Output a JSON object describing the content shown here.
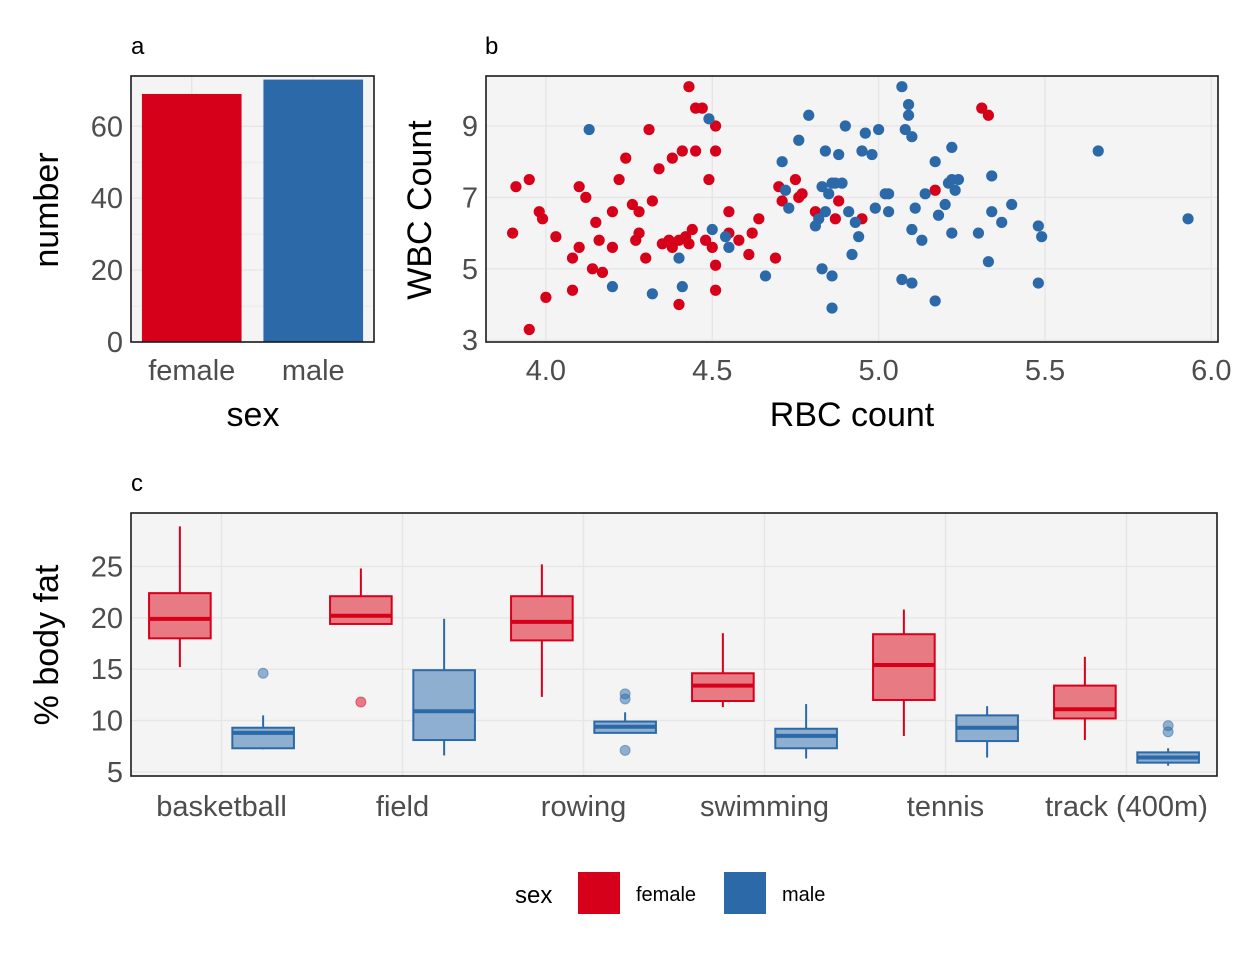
{
  "colors": {
    "female": "#D7001A",
    "male": "#2C69A8",
    "panel_bg": "#F4F4F4",
    "grid": "#E6E6E6",
    "female_fill": "#E87A83",
    "male_fill": "#8FAFD0"
  },
  "legend": {
    "title": "sex",
    "items": [
      {
        "key": "female",
        "label": "female"
      },
      {
        "key": "male",
        "label": "male"
      }
    ],
    "position": "bottom"
  },
  "chart_data": [
    {
      "panel": "a",
      "type": "bar",
      "title": "a",
      "xlabel": "sex",
      "ylabel": "number",
      "categories": [
        "female",
        "male"
      ],
      "values": [
        69,
        73
      ],
      "yticks": [
        0,
        20,
        40,
        60
      ],
      "ytick_labels": [
        "0",
        "20",
        "40",
        "60"
      ],
      "ylim": [
        0,
        74
      ],
      "grid": true
    },
    {
      "panel": "b",
      "type": "scatter",
      "title": "b",
      "xlabel": "RBC count",
      "ylabel": "WBC Count",
      "xlim": [
        3.82,
        6.02
      ],
      "ylim": [
        2.95,
        10.4
      ],
      "xticks": [
        4.0,
        4.5,
        5.0,
        5.5,
        6.0
      ],
      "xtick_labels": [
        "4.0",
        "4.5",
        "5.0",
        "5.5",
        "6.0"
      ],
      "yticks": [
        3,
        5,
        7,
        9
      ],
      "ytick_labels": [
        "3",
        "5",
        "7",
        "9"
      ],
      "grid": true,
      "series": [
        {
          "name": "female",
          "points": [
            [
              3.91,
              7.3
            ],
            [
              3.95,
              7.5
            ],
            [
              3.9,
              6.0
            ],
            [
              3.95,
              3.3
            ],
            [
              4.0,
              4.2
            ],
            [
              3.98,
              6.6
            ],
            [
              3.99,
              6.4
            ],
            [
              4.03,
              5.9
            ],
            [
              4.08,
              5.3
            ],
            [
              4.08,
              4.4
            ],
            [
              4.1,
              7.3
            ],
            [
              4.12,
              7.0
            ],
            [
              4.14,
              5.0
            ],
            [
              4.16,
              5.8
            ],
            [
              4.17,
              4.9
            ],
            [
              4.2,
              6.6
            ],
            [
              4.22,
              7.5
            ],
            [
              4.24,
              8.1
            ],
            [
              4.26,
              6.8
            ],
            [
              4.27,
              5.8
            ],
            [
              4.28,
              6.0
            ],
            [
              4.28,
              6.6
            ],
            [
              4.3,
              5.3
            ],
            [
              4.31,
              8.9
            ],
            [
              4.32,
              6.9
            ],
            [
              4.34,
              7.8
            ],
            [
              4.37,
              5.8
            ],
            [
              4.38,
              5.6
            ],
            [
              4.38,
              8.1
            ],
            [
              4.4,
              5.8
            ],
            [
              4.4,
              4.0
            ],
            [
              4.41,
              8.3
            ],
            [
              4.42,
              5.9
            ],
            [
              4.43,
              5.7
            ],
            [
              4.43,
              10.1
            ],
            [
              4.44,
              6.1
            ],
            [
              4.45,
              8.3
            ],
            [
              4.45,
              9.5
            ],
            [
              4.47,
              9.5
            ],
            [
              4.48,
              5.8
            ],
            [
              4.49,
              7.5
            ],
            [
              4.5,
              5.6
            ],
            [
              4.51,
              9.0
            ],
            [
              4.51,
              8.3
            ],
            [
              4.51,
              5.1
            ],
            [
              4.51,
              4.4
            ],
            [
              4.55,
              6.6
            ],
            [
              4.58,
              5.8
            ],
            [
              4.62,
              6.0
            ],
            [
              4.64,
              6.4
            ],
            [
              4.69,
              5.3
            ],
            [
              4.7,
              7.3
            ],
            [
              4.71,
              6.9
            ],
            [
              4.75,
              7.5
            ],
            [
              4.77,
              7.1
            ],
            [
              4.81,
              6.6
            ],
            [
              4.87,
              6.4
            ],
            [
              4.88,
              6.9
            ],
            [
              4.95,
              6.4
            ],
            [
              5.17,
              7.2
            ],
            [
              5.31,
              9.5
            ],
            [
              5.33,
              9.3
            ],
            [
              4.76,
              7.0
            ],
            [
              4.55,
              6.0
            ],
            [
              4.35,
              5.7
            ],
            [
              4.2,
              5.6
            ],
            [
              4.15,
              6.3
            ],
            [
              4.1,
              5.6
            ],
            [
              4.61,
              5.4
            ]
          ]
        },
        {
          "name": "male",
          "points": [
            [
              4.13,
              8.9
            ],
            [
              4.2,
              4.5
            ],
            [
              4.32,
              4.3
            ],
            [
              4.4,
              5.3
            ],
            [
              4.41,
              4.5
            ],
            [
              4.49,
              9.2
            ],
            [
              4.5,
              6.1
            ],
            [
              4.54,
              5.9
            ],
            [
              4.55,
              5.6
            ],
            [
              4.66,
              4.8
            ],
            [
              4.71,
              8.0
            ],
            [
              4.73,
              6.7
            ],
            [
              4.72,
              7.2
            ],
            [
              4.76,
              8.6
            ],
            [
              4.79,
              9.3
            ],
            [
              4.81,
              6.2
            ],
            [
              4.82,
              6.4
            ],
            [
              4.83,
              7.3
            ],
            [
              4.83,
              5.0
            ],
            [
              4.84,
              8.3
            ],
            [
              4.84,
              6.6
            ],
            [
              4.85,
              7.1
            ],
            [
              4.86,
              4.8
            ],
            [
              4.86,
              3.9
            ],
            [
              4.86,
              7.4
            ],
            [
              4.87,
              7.4
            ],
            [
              4.88,
              8.2
            ],
            [
              4.89,
              7.4
            ],
            [
              4.9,
              9.0
            ],
            [
              4.91,
              6.6
            ],
            [
              4.92,
              5.4
            ],
            [
              4.93,
              6.3
            ],
            [
              4.94,
              5.9
            ],
            [
              4.95,
              8.3
            ],
            [
              4.96,
              8.8
            ],
            [
              4.98,
              8.2
            ],
            [
              4.99,
              6.7
            ],
            [
              5.0,
              8.9
            ],
            [
              5.02,
              7.1
            ],
            [
              5.03,
              7.1
            ],
            [
              5.03,
              6.6
            ],
            [
              5.07,
              10.1
            ],
            [
              5.08,
              8.9
            ],
            [
              5.09,
              9.6
            ],
            [
              5.09,
              9.3
            ],
            [
              5.1,
              8.7
            ],
            [
              5.07,
              4.7
            ],
            [
              5.1,
              4.6
            ],
            [
              5.1,
              6.1
            ],
            [
              5.11,
              6.7
            ],
            [
              5.13,
              5.8
            ],
            [
              5.14,
              7.1
            ],
            [
              5.17,
              8.0
            ],
            [
              5.18,
              6.5
            ],
            [
              5.17,
              4.1
            ],
            [
              5.2,
              6.8
            ],
            [
              5.21,
              7.4
            ],
            [
              5.22,
              8.4
            ],
            [
              5.23,
              7.2
            ],
            [
              5.24,
              7.5
            ],
            [
              5.22,
              6.0
            ],
            [
              5.3,
              6.0
            ],
            [
              5.33,
              5.2
            ],
            [
              5.34,
              7.6
            ],
            [
              5.34,
              6.6
            ],
            [
              5.37,
              6.3
            ],
            [
              5.4,
              6.8
            ],
            [
              5.48,
              6.2
            ],
            [
              5.48,
              4.6
            ],
            [
              5.49,
              5.9
            ],
            [
              5.66,
              8.3
            ],
            [
              5.93,
              6.4
            ],
            [
              5.22,
              7.5
            ]
          ]
        }
      ]
    },
    {
      "panel": "c",
      "type": "boxplot",
      "title": "c",
      "xlabel": "",
      "ylabel": "% body fat",
      "categories": [
        "basketball",
        "field",
        "rowing",
        "swimming",
        "tennis",
        "track (400m)"
      ],
      "ylim": [
        4.6,
        30.2
      ],
      "yticks": [
        5,
        10,
        15,
        20,
        25
      ],
      "ytick_labels": [
        "5",
        "10",
        "15",
        "20",
        "25"
      ],
      "grid": true,
      "series": [
        {
          "name": "female",
          "boxes": [
            {
              "category": "basketball",
              "whisker_low": 15.2,
              "q1": 18.0,
              "median": 19.9,
              "q3": 22.4,
              "whisker_high": 28.9,
              "outliers": []
            },
            {
              "category": "field",
              "whisker_low": 19.4,
              "q1": 19.4,
              "median": 20.2,
              "q3": 22.1,
              "whisker_high": 24.8,
              "outliers": [
                11.8
              ]
            },
            {
              "category": "rowing",
              "whisker_low": 12.3,
              "q1": 17.8,
              "median": 19.6,
              "q3": 22.1,
              "whisker_high": 25.2,
              "outliers": []
            },
            {
              "category": "swimming",
              "whisker_low": 11.3,
              "q1": 11.9,
              "median": 13.4,
              "q3": 14.6,
              "whisker_high": 18.5,
              "outliers": []
            },
            {
              "category": "tennis",
              "whisker_low": 8.5,
              "q1": 12.0,
              "median": 15.4,
              "q3": 18.4,
              "whisker_high": 20.8,
              "outliers": []
            },
            {
              "category": "track (400m)",
              "whisker_low": 8.1,
              "q1": 10.2,
              "median": 11.1,
              "q3": 13.4,
              "whisker_high": 16.2,
              "outliers": []
            }
          ]
        },
        {
          "name": "male",
          "boxes": [
            {
              "category": "basketball",
              "whisker_low": 7.2,
              "q1": 7.3,
              "median": 8.8,
              "q3": 9.3,
              "whisker_high": 10.5,
              "outliers": [
                14.6
              ]
            },
            {
              "category": "field",
              "whisker_low": 6.6,
              "q1": 8.1,
              "median": 10.9,
              "q3": 14.9,
              "whisker_high": 19.9,
              "outliers": []
            },
            {
              "category": "rowing",
              "whisker_low": 8.8,
              "q1": 8.8,
              "median": 9.4,
              "q3": 9.9,
              "whisker_high": 10.8,
              "outliers": [
                7.1,
                12.1,
                12.6
              ]
            },
            {
              "category": "swimming",
              "whisker_low": 6.3,
              "q1": 7.3,
              "median": 8.5,
              "q3": 9.2,
              "whisker_high": 11.6,
              "outliers": []
            },
            {
              "category": "tennis",
              "whisker_low": 6.4,
              "q1": 8.0,
              "median": 9.3,
              "q3": 10.5,
              "whisker_high": 11.4,
              "outliers": []
            },
            {
              "category": "track (400m)",
              "whisker_low": 5.6,
              "q1": 5.9,
              "median": 6.4,
              "q3": 6.9,
              "whisker_high": 7.3,
              "outliers": [
                8.9,
                9.5
              ]
            }
          ]
        }
      ]
    }
  ]
}
